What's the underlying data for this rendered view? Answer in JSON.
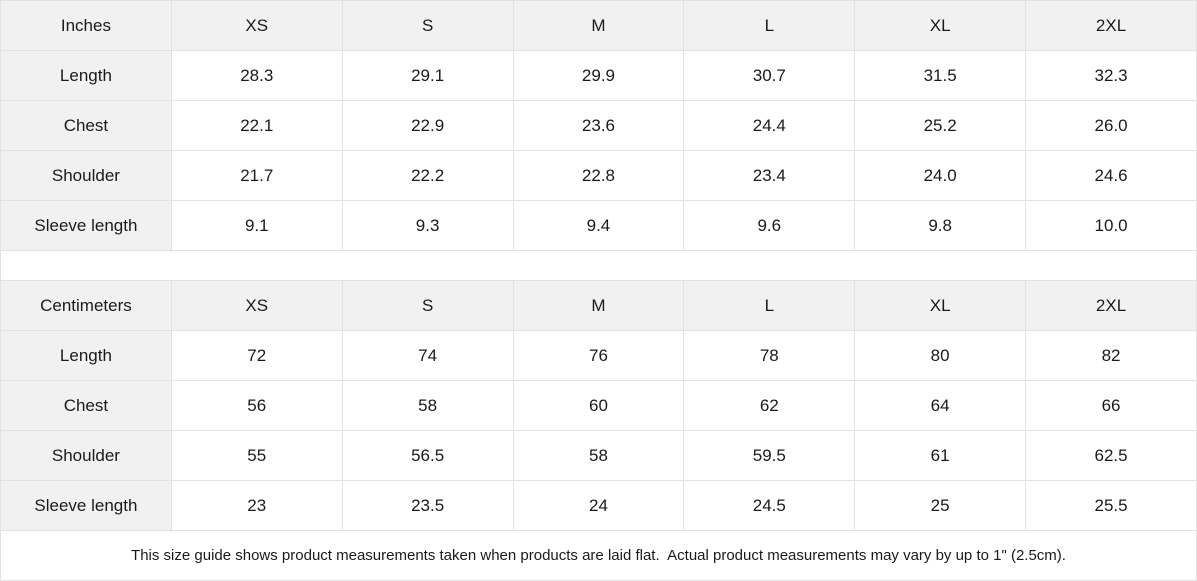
{
  "table": {
    "sections": [
      {
        "unit_label": "Inches",
        "size_headers": [
          "XS",
          "S",
          "M",
          "L",
          "XL",
          "2XL"
        ],
        "rows": [
          {
            "label": "Length",
            "values": [
              "28.3",
              "29.1",
              "29.9",
              "30.7",
              "31.5",
              "32.3"
            ]
          },
          {
            "label": "Chest",
            "values": [
              "22.1",
              "22.9",
              "23.6",
              "24.4",
              "25.2",
              "26.0"
            ]
          },
          {
            "label": "Shoulder",
            "values": [
              "21.7",
              "22.2",
              "22.8",
              "23.4",
              "24.0",
              "24.6"
            ]
          },
          {
            "label": "Sleeve length",
            "values": [
              "9.1",
              "9.3",
              "9.4",
              "9.6",
              "9.8",
              "10.0"
            ]
          }
        ]
      },
      {
        "unit_label": "Centimeters",
        "size_headers": [
          "XS",
          "S",
          "M",
          "L",
          "XL",
          "2XL"
        ],
        "rows": [
          {
            "label": "Length",
            "values": [
              "72",
              "74",
              "76",
              "78",
              "80",
              "82"
            ]
          },
          {
            "label": "Chest",
            "values": [
              "56",
              "58",
              "60",
              "62",
              "64",
              "66"
            ]
          },
          {
            "label": "Shoulder",
            "values": [
              "55",
              "56.5",
              "58",
              "59.5",
              "61",
              "62.5"
            ]
          },
          {
            "label": "Sleeve length",
            "values": [
              "23",
              "23.5",
              "24",
              "24.5",
              "25",
              "25.5"
            ]
          }
        ]
      }
    ],
    "footer_note": "This size guide shows product measurements taken when products are laid flat.  Actual product measurements may vary by up to 1\" (2.5cm).",
    "colors": {
      "header_bg": "#f1f1f1",
      "cell_bg": "#ffffff",
      "border": "#e2e2e2",
      "text": "#1a1a1a"
    }
  },
  "chart_data": [
    {
      "type": "table",
      "title": "Inches",
      "columns": [
        "Inches",
        "XS",
        "S",
        "M",
        "L",
        "XL",
        "2XL"
      ],
      "rows": [
        [
          "Length",
          28.3,
          29.1,
          29.9,
          30.7,
          31.5,
          32.3
        ],
        [
          "Chest",
          22.1,
          22.9,
          23.6,
          24.4,
          25.2,
          26.0
        ],
        [
          "Shoulder",
          21.7,
          22.2,
          22.8,
          23.4,
          24.0,
          24.6
        ],
        [
          "Sleeve length",
          9.1,
          9.3,
          9.4,
          9.6,
          9.8,
          10.0
        ]
      ]
    },
    {
      "type": "table",
      "title": "Centimeters",
      "columns": [
        "Centimeters",
        "XS",
        "S",
        "M",
        "L",
        "XL",
        "2XL"
      ],
      "rows": [
        [
          "Length",
          72,
          74,
          76,
          78,
          80,
          82
        ],
        [
          "Chest",
          56,
          58,
          60,
          62,
          64,
          66
        ],
        [
          "Shoulder",
          55,
          56.5,
          58,
          59.5,
          61,
          62.5
        ],
        [
          "Sleeve length",
          23,
          23.5,
          24,
          24.5,
          25,
          25.5
        ]
      ]
    }
  ]
}
